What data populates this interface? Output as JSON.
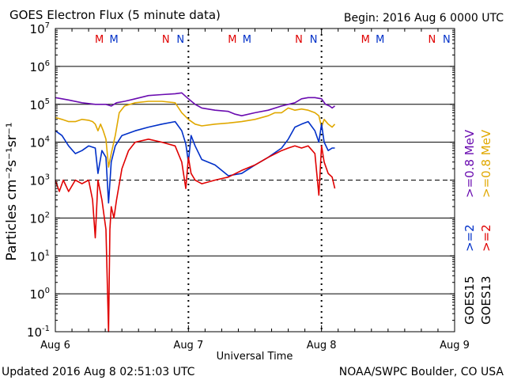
{
  "chart_data": {
    "type": "line",
    "title": "GOES Electron Flux (5 minute data)",
    "begin_label": "Begin: 2016 Aug 6 0000 UTC",
    "xlabel": "Universal Time",
    "ylabel": "Particles cm⁻²s⁻¹sr⁻¹",
    "x_unit": "days since 2016 Aug 6 0000 UTC",
    "xlim": [
      0,
      3
    ],
    "ylim_log10": [
      -1,
      7
    ],
    "x_ticks": [
      {
        "value": 0,
        "label": "Aug 6"
      },
      {
        "value": 1,
        "label": "Aug 7"
      },
      {
        "value": 2,
        "label": "Aug 8"
      },
      {
        "value": 3,
        "label": "Aug 9"
      }
    ],
    "y_ticks": [
      {
        "exp": -1,
        "label": "10",
        "sup": "-1"
      },
      {
        "exp": 0,
        "label": "10",
        "sup": "0"
      },
      {
        "exp": 1,
        "label": "10",
        "sup": "1"
      },
      {
        "exp": 2,
        "label": "10",
        "sup": "2"
      },
      {
        "exp": 3,
        "label": "10",
        "sup": "3"
      },
      {
        "exp": 4,
        "label": "10",
        "sup": "4"
      },
      {
        "exp": 5,
        "label": "10",
        "sup": "5"
      },
      {
        "exp": 6,
        "label": "10",
        "sup": "6"
      },
      {
        "exp": 7,
        "label": "10",
        "sup": "7"
      }
    ],
    "dashed_threshold_exp": 3,
    "colors": {
      "red": "#e00000",
      "blue": "#0030c8",
      "purple": "#6a0cb0",
      "orange": "#e0a800",
      "black": "#000000"
    },
    "local_time_markers": [
      {
        "x": 0.33,
        "label": "M",
        "color": "#e00000"
      },
      {
        "x": 0.44,
        "label": "M",
        "color": "#0030c8"
      },
      {
        "x": 0.83,
        "label": "N",
        "color": "#e00000"
      },
      {
        "x": 0.94,
        "label": "N",
        "color": "#0030c8"
      },
      {
        "x": 1.33,
        "label": "M",
        "color": "#e00000"
      },
      {
        "x": 1.44,
        "label": "M",
        "color": "#0030c8"
      },
      {
        "x": 1.83,
        "label": "N",
        "color": "#e00000"
      },
      {
        "x": 1.94,
        "label": "N",
        "color": "#0030c8"
      },
      {
        "x": 2.33,
        "label": "M",
        "color": "#e00000"
      },
      {
        "x": 2.44,
        "label": "M",
        "color": "#0030c8"
      },
      {
        "x": 2.83,
        "label": "N",
        "color": "#e00000"
      },
      {
        "x": 2.94,
        "label": "N",
        "color": "#0030c8"
      }
    ],
    "vertical_dotted_x": [
      1.0,
      2.0
    ],
    "series": [
      {
        "name": ">=0.8 MeV GOES15",
        "color": "#6a0cb0",
        "points": [
          [
            0.0,
            150000.0
          ],
          [
            0.1,
            130000.0
          ],
          [
            0.2,
            110000.0
          ],
          [
            0.3,
            100000.0
          ],
          [
            0.38,
            100000.0
          ],
          [
            0.42,
            90000.0
          ],
          [
            0.46,
            110000.0
          ],
          [
            0.52,
            120000.0
          ],
          [
            0.6,
            140000.0
          ],
          [
            0.7,
            170000.0
          ],
          [
            0.8,
            180000.0
          ],
          [
            0.9,
            190000.0
          ],
          [
            0.95,
            200000.0
          ],
          [
            1.0,
            140000.0
          ],
          [
            1.05,
            100000.0
          ],
          [
            1.1,
            80000.0
          ],
          [
            1.2,
            70000.0
          ],
          [
            1.3,
            65000.0
          ],
          [
            1.35,
            55000.0
          ],
          [
            1.4,
            50000.0
          ],
          [
            1.5,
            60000.0
          ],
          [
            1.6,
            70000.0
          ],
          [
            1.7,
            90000.0
          ],
          [
            1.8,
            110000.0
          ],
          [
            1.85,
            140000.0
          ],
          [
            1.9,
            150000.0
          ],
          [
            1.95,
            150000.0
          ],
          [
            2.0,
            140000.0
          ],
          [
            2.03,
            100000.0
          ],
          [
            2.06,
            90000.0
          ],
          [
            2.08,
            80000.0
          ],
          [
            2.1,
            90000.0
          ]
        ]
      },
      {
        "name": ">=0.8 MeV GOES13",
        "color": "#e0a800",
        "points": [
          [
            0.0,
            45000.0
          ],
          [
            0.05,
            40000.0
          ],
          [
            0.1,
            35000.0
          ],
          [
            0.15,
            35000.0
          ],
          [
            0.2,
            40000.0
          ],
          [
            0.25,
            38000.0
          ],
          [
            0.28,
            35000.0
          ],
          [
            0.3,
            30000.0
          ],
          [
            0.32,
            20000.0
          ],
          [
            0.34,
            30000.0
          ],
          [
            0.36,
            20000.0
          ],
          [
            0.38,
            12000.0
          ],
          [
            0.4,
            2200.0
          ],
          [
            0.42,
            5000.0
          ],
          [
            0.45,
            15000.0
          ],
          [
            0.48,
            60000.0
          ],
          [
            0.52,
            90000.0
          ],
          [
            0.6,
            110000.0
          ],
          [
            0.7,
            120000.0
          ],
          [
            0.8,
            120000.0
          ],
          [
            0.9,
            110000.0
          ],
          [
            0.95,
            60000.0
          ],
          [
            1.0,
            40000.0
          ],
          [
            1.05,
            30000.0
          ],
          [
            1.1,
            27000.0
          ],
          [
            1.2,
            30000.0
          ],
          [
            1.3,
            32000.0
          ],
          [
            1.4,
            35000.0
          ],
          [
            1.5,
            40000.0
          ],
          [
            1.6,
            50000.0
          ],
          [
            1.65,
            60000.0
          ],
          [
            1.7,
            60000.0
          ],
          [
            1.75,
            80000.0
          ],
          [
            1.8,
            70000.0
          ],
          [
            1.85,
            75000.0
          ],
          [
            1.9,
            70000.0
          ],
          [
            1.95,
            60000.0
          ],
          [
            1.98,
            50000.0
          ],
          [
            2.0,
            25000.0
          ],
          [
            2.02,
            40000.0
          ],
          [
            2.05,
            30000.0
          ],
          [
            2.08,
            25000.0
          ],
          [
            2.1,
            30000.0
          ]
        ]
      },
      {
        "name": ">=2 MeV GOES15",
        "color": "#0030c8",
        "points": [
          [
            0.0,
            20000.0
          ],
          [
            0.05,
            15000.0
          ],
          [
            0.1,
            8000.0
          ],
          [
            0.15,
            5000.0
          ],
          [
            0.2,
            6000.0
          ],
          [
            0.25,
            8000.0
          ],
          [
            0.3,
            7000.0
          ],
          [
            0.32,
            1500.0
          ],
          [
            0.35,
            6000.0
          ],
          [
            0.38,
            4000.0
          ],
          [
            0.4,
            250.0
          ],
          [
            0.42,
            3000.0
          ],
          [
            0.45,
            8000.0
          ],
          [
            0.5,
            15000.0
          ],
          [
            0.6,
            20000.0
          ],
          [
            0.7,
            25000.0
          ],
          [
            0.8,
            30000.0
          ],
          [
            0.9,
            35000.0
          ],
          [
            0.95,
            20000.0
          ],
          [
            0.98,
            9000.0
          ],
          [
            1.0,
            3000.0
          ],
          [
            1.02,
            15000.0
          ],
          [
            1.05,
            8000.0
          ],
          [
            1.1,
            3500.0
          ],
          [
            1.2,
            2500.0
          ],
          [
            1.3,
            1300.0
          ],
          [
            1.4,
            1500.0
          ],
          [
            1.5,
            2500.0
          ],
          [
            1.6,
            4000.0
          ],
          [
            1.7,
            7000.0
          ],
          [
            1.75,
            12000.0
          ],
          [
            1.8,
            25000.0
          ],
          [
            1.85,
            30000.0
          ],
          [
            1.9,
            35000.0
          ],
          [
            1.95,
            20000.0
          ],
          [
            1.98,
            10000.0
          ],
          [
            2.0,
            30000.0
          ],
          [
            2.02,
            10000.0
          ],
          [
            2.05,
            6000.0
          ],
          [
            2.08,
            7000.0
          ],
          [
            2.1,
            7000.0
          ]
        ]
      },
      {
        "name": ">=2 MeV GOES13",
        "color": "#e00000",
        "points": [
          [
            0.0,
            1000.0
          ],
          [
            0.03,
            500.0
          ],
          [
            0.06,
            1000.0
          ],
          [
            0.1,
            500.0
          ],
          [
            0.15,
            1000.0
          ],
          [
            0.2,
            800.0
          ],
          [
            0.25,
            1000.0
          ],
          [
            0.28,
            300.0
          ],
          [
            0.3,
            30.0
          ],
          [
            0.32,
            1000.0
          ],
          [
            0.35,
            300.0
          ],
          [
            0.38,
            50.0
          ],
          [
            0.4,
            0.1
          ],
          [
            0.41,
            50.0
          ],
          [
            0.42,
            200.0
          ],
          [
            0.44,
            100.0
          ],
          [
            0.46,
            300.0
          ],
          [
            0.5,
            2000.0
          ],
          [
            0.55,
            6000.0
          ],
          [
            0.6,
            10000.0
          ],
          [
            0.7,
            12000.0
          ],
          [
            0.8,
            10000.0
          ],
          [
            0.9,
            8000.0
          ],
          [
            0.95,
            3000.0
          ],
          [
            0.98,
            600.0
          ],
          [
            1.0,
            4000.0
          ],
          [
            1.02,
            1500.0
          ],
          [
            1.05,
            1000.0
          ],
          [
            1.1,
            800.0
          ],
          [
            1.2,
            1000.0
          ],
          [
            1.3,
            1200.0
          ],
          [
            1.4,
            1800.0
          ],
          [
            1.5,
            2500.0
          ],
          [
            1.6,
            4000.0
          ],
          [
            1.7,
            6000.0
          ],
          [
            1.75,
            7000.0
          ],
          [
            1.8,
            8000.0
          ],
          [
            1.85,
            7000.0
          ],
          [
            1.9,
            8000.0
          ],
          [
            1.95,
            5000.0
          ],
          [
            1.98,
            400.0
          ],
          [
            2.0,
            8000.0
          ],
          [
            2.02,
            3000.0
          ],
          [
            2.05,
            1500.0
          ],
          [
            2.08,
            1200.0
          ],
          [
            2.1,
            600.0
          ]
        ]
      }
    ],
    "legend": [
      {
        "text": ">=0.8 MeV",
        "color": "#6a0cb0"
      },
      {
        "text": ">=0.8 MeV",
        "color": "#e0a800"
      },
      {
        "text": ">=2",
        "color": "#0030c8"
      },
      {
        "text": ">=2",
        "color": "#e00000"
      },
      {
        "text": "GOES15",
        "color": "#000000"
      },
      {
        "text": "GOES13",
        "color": "#000000"
      }
    ]
  },
  "footer": {
    "updated": "Updated 2016 Aug  8 02:51:03 UTC",
    "credit": "NOAA/SWPC Boulder, CO USA"
  }
}
